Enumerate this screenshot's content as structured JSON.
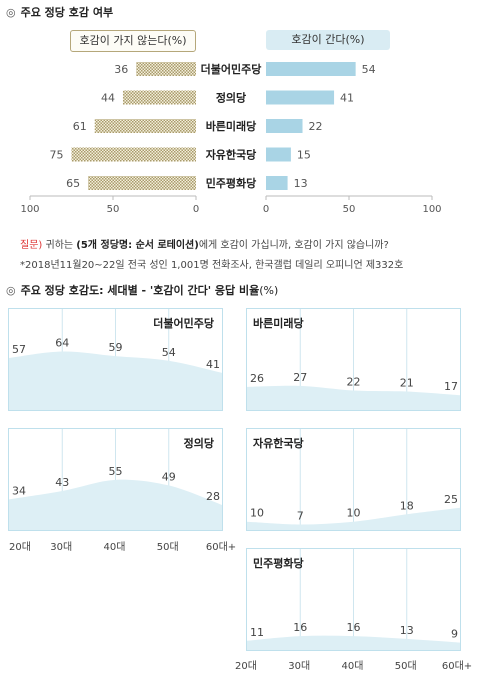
{
  "section1": {
    "symbol": "◎",
    "title": "주요 정당 호감 여부"
  },
  "legend": {
    "negative": "호감이 가지 않는다(%)",
    "positive": "호감이 간다(%)"
  },
  "bar_axis": {
    "left_ticks": [
      "100",
      "50",
      "0"
    ],
    "right_ticks": [
      "0",
      "50",
      "100"
    ]
  },
  "notes": {
    "q_prefix": "질문)",
    "q_mid1": " 귀하는 ",
    "q_bold": "(5개 정당명: 순서 로테이션)",
    "q_rest": "에게 호감이 가십니까, 호감이 가지 않습니까?",
    "source": "*2018년11월20~22일 전국 성인 1,001명 전화조사, 한국갤럽 데일리 오피니언 제332호"
  },
  "section2": {
    "symbol": "◎",
    "title": "주요 정당 호감도: 세대별 - '호감이 간다' 응답 비율",
    "unit": "(%)"
  },
  "age_labels": [
    "20대",
    "30대",
    "40대",
    "50대",
    "60대+"
  ],
  "colors": {
    "positive": "#a9d4e5",
    "negative_hatch": "#a99b6c",
    "panel_fill": "#ddeff5",
    "panel_border": "#bfe0ec"
  },
  "chart_data": [
    {
      "type": "bar",
      "title": "주요 정당 호감 여부",
      "categories": [
        "더불어민주당",
        "정의당",
        "바른미래당",
        "자유한국당",
        "민주평화당"
      ],
      "series": [
        {
          "name": "호감이 가지 않는다(%)",
          "values": [
            36,
            44,
            61,
            75,
            65
          ]
        },
        {
          "name": "호감이 간다(%)",
          "values": [
            54,
            41,
            22,
            15,
            13
          ]
        }
      ],
      "xlim": [
        0,
        100
      ]
    },
    {
      "type": "area",
      "title": "주요 정당 호감도: 세대별 - '호감이 간다' 응답 비율",
      "categories": [
        "20대",
        "30대",
        "40대",
        "50대",
        "60대+"
      ],
      "ylim": [
        0,
        100
      ],
      "series": [
        {
          "name": "더불어민주당",
          "values": [
            57,
            64,
            59,
            54,
            41
          ]
        },
        {
          "name": "바른미래당",
          "values": [
            26,
            27,
            22,
            21,
            17
          ]
        },
        {
          "name": "정의당",
          "values": [
            34,
            43,
            55,
            49,
            28
          ]
        },
        {
          "name": "자유한국당",
          "values": [
            10,
            7,
            10,
            18,
            25
          ]
        },
        {
          "name": "민주평화당",
          "values": [
            11,
            16,
            16,
            13,
            9
          ]
        }
      ]
    }
  ]
}
